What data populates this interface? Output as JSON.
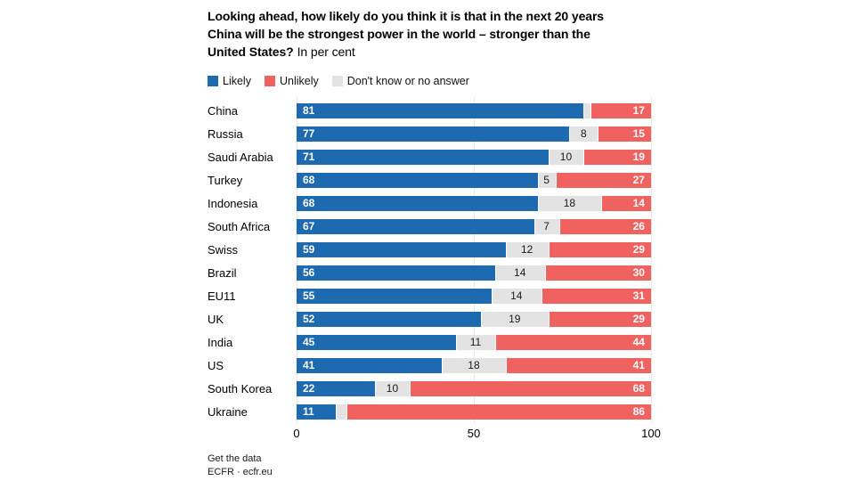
{
  "title": {
    "lines": [
      "Looking ahead, how likely do you think it is that in the next 20 years",
      "China will be the strongest power in the world – stronger than the",
      "United States?"
    ],
    "note": "In per cent"
  },
  "legend": {
    "items": [
      {
        "label": "Likely",
        "color": "#1e6ab0"
      },
      {
        "label": "Unlikely",
        "color": "#f0625f"
      },
      {
        "label": "Don't know or no answer",
        "color": "#e3e3e3"
      }
    ]
  },
  "chart_data": {
    "type": "bar",
    "orientation": "horizontal",
    "stacked": true,
    "title": "Looking ahead, how likely do you think it is that in the next 20 years China will be the strongest power in the world – stronger than the United States?",
    "subtitle": "In per cent",
    "unit": "%",
    "categories": [
      "China",
      "Russia",
      "Saudi Arabia",
      "Turkey",
      "Indonesia",
      "South Africa",
      "Swiss",
      "Brazil",
      "EU11",
      "UK",
      "India",
      "US",
      "South Korea",
      "Ukraine"
    ],
    "series": [
      {
        "name": "Likely",
        "key": "likely",
        "color": "#1e6ab0",
        "values": [
          81,
          77,
          71,
          68,
          68,
          67,
          59,
          56,
          55,
          52,
          45,
          41,
          22,
          11
        ]
      },
      {
        "name": "Don't know or no answer",
        "key": "dont-know",
        "color": "#e3e3e3",
        "values": [
          2,
          8,
          10,
          5,
          18,
          7,
          12,
          14,
          14,
          19,
          11,
          18,
          10,
          3
        ]
      },
      {
        "name": "Unlikely",
        "key": "unlikely",
        "color": "#f0625f",
        "values": [
          17,
          15,
          19,
          27,
          14,
          26,
          29,
          30,
          31,
          29,
          44,
          41,
          68,
          86
        ]
      }
    ],
    "xlim": [
      0,
      100
    ],
    "x_ticks": [
      "0",
      "50",
      "100"
    ],
    "x_tick_positions": [
      0,
      50,
      100
    ],
    "grid": "light vertical gridlines at tick positions",
    "legend_position": "top",
    "value_label_rule": "labels inside segments; gray segment label hidden when value < 5"
  },
  "footer": {
    "link_label": "Get the data",
    "source": "ECFR · ecfr.eu"
  }
}
